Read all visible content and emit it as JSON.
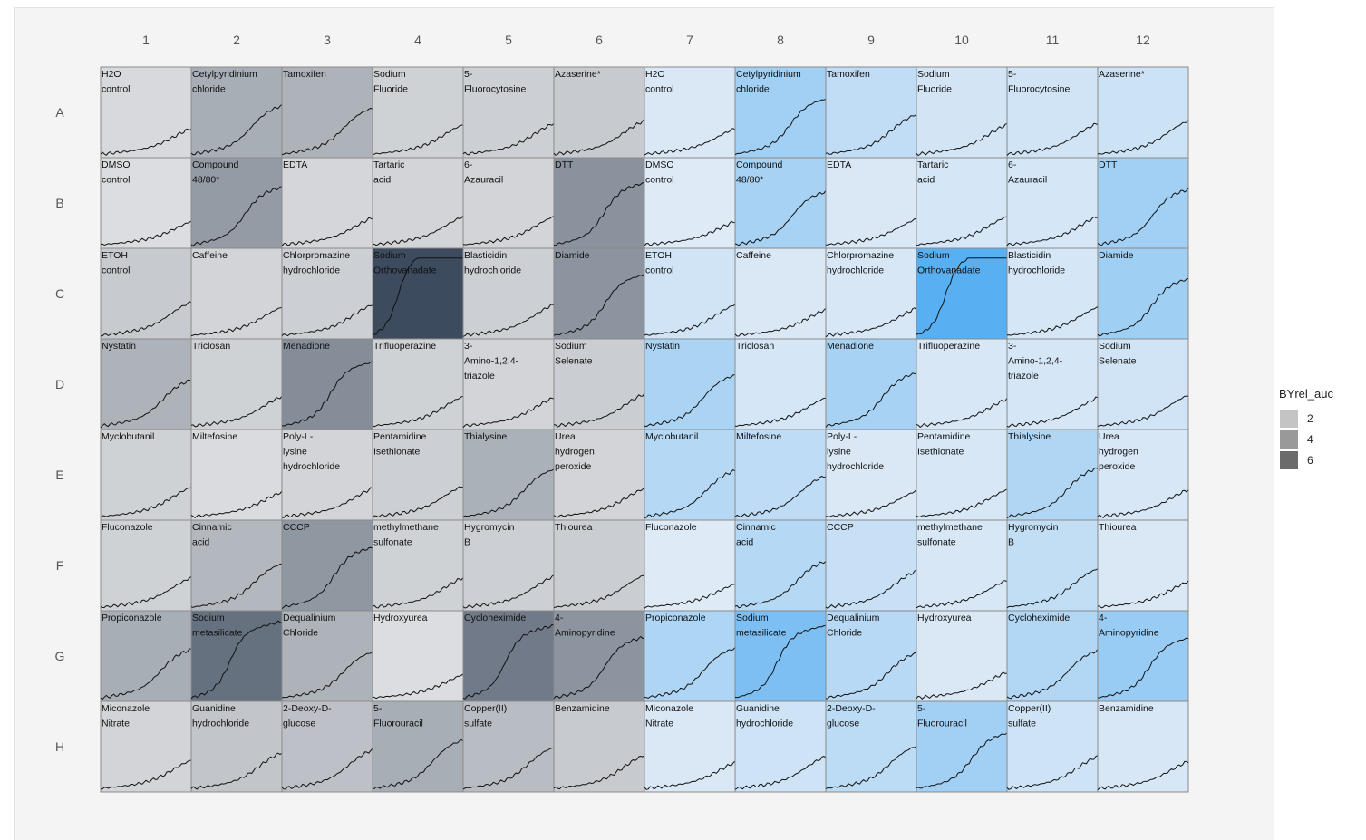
{
  "chart_data": {
    "type": "heatmap",
    "title": "",
    "columns": [
      "1",
      "2",
      "3",
      "4",
      "5",
      "6",
      "7",
      "8",
      "9",
      "10",
      "11",
      "12"
    ],
    "rows": [
      "A",
      "B",
      "C",
      "D",
      "E",
      "F",
      "G",
      "H"
    ],
    "compounds": [
      [
        "H2O\ncontrol",
        "Cetylpyridinium\nchloride",
        "Tamoxifen",
        "Sodium\nFluoride",
        "5-\nFluorocytosine",
        "Azaserine*"
      ],
      [
        "DMSO\ncontrol",
        "Compound\n48/80*",
        "EDTA",
        "Tartaric\nacid",
        "6-\nAzauracil",
        "DTT"
      ],
      [
        "ETOH\ncontrol",
        "Caffeine",
        "Chlorpromazine\nhydrochloride",
        "Sodium\nOrthovanadate",
        "Blasticidin\nhydrochloride",
        "Diamide"
      ],
      [
        "Nystatin",
        "Triclosan",
        "Menadione",
        "Trifluoperazine",
        "3-\nAmino-1,2,4-\ntriazole",
        "Sodium\nSelenate"
      ],
      [
        "Myclobutanil",
        "Miltefosine",
        "Poly-L-\nlysine\nhydrochloride",
        "Pentamidine\nIsethionate",
        "Thialysine",
        "Urea\nhydrogen\nperoxide"
      ],
      [
        "Fluconazole",
        "Cinnamic\nacid",
        "CCCP",
        "methylmethane\nsulfonate",
        "Hygromycin\nB",
        "Thiourea"
      ],
      [
        "Propiconazole",
        "Sodium\nmetasilicate",
        "Dequalinium\nChloride",
        "Hydroxyurea",
        "Cycloheximide",
        "4-\nAminopyridine"
      ],
      [
        "Miconazole\nNitrate",
        "Guanidine\nhydrochloride",
        "2-Deoxy-D-\nglucose",
        "5-\nFluorouracil",
        "Copper(II)\nsulfate",
        "Benzamidine"
      ]
    ],
    "gray_auc": [
      [
        1.4,
        3.2,
        3.0,
        1.7,
        1.8,
        2.0
      ],
      [
        1.2,
        4.0,
        1.5,
        1.6,
        1.6,
        4.4
      ],
      [
        2.0,
        1.6,
        1.8,
        7.4,
        1.8,
        4.3
      ],
      [
        3.0,
        1.7,
        4.6,
        1.7,
        1.6,
        1.9
      ],
      [
        1.7,
        1.3,
        1.6,
        1.8,
        3.1,
        1.6
      ],
      [
        1.7,
        2.8,
        4.2,
        1.7,
        1.8,
        1.9
      ],
      [
        3.2,
        5.8,
        3.0,
        1.2,
        5.4,
        4.3
      ],
      [
        1.6,
        2.2,
        2.4,
        3.2,
        2.6,
        2.0
      ]
    ],
    "blue_auc": [
      [
        1.4,
        3.8,
        2.5,
        1.7,
        1.8,
        2.0
      ],
      [
        1.2,
        3.6,
        1.4,
        1.6,
        1.6,
        3.8
      ],
      [
        1.8,
        1.4,
        1.5,
        7.0,
        1.6,
        3.9
      ],
      [
        3.4,
        1.6,
        3.6,
        1.5,
        1.6,
        1.8
      ],
      [
        3.0,
        2.6,
        1.4,
        1.5,
        3.2,
        1.5
      ],
      [
        1.2,
        3.0,
        2.2,
        1.5,
        2.4,
        1.4
      ],
      [
        3.3,
        5.4,
        2.9,
        1.4,
        3.1,
        4.2
      ],
      [
        1.4,
        1.9,
        2.7,
        3.8,
        1.9,
        1.5
      ]
    ],
    "legend": {
      "title": "BYrel_auc",
      "entries": [
        {
          "label": "2",
          "value": 2,
          "color": "#c4c4c4"
        },
        {
          "label": "4",
          "value": 4,
          "color": "#999999"
        },
        {
          "label": "6",
          "value": 6,
          "color": "#6b6b6b"
        }
      ],
      "position": "right"
    },
    "colors": {
      "panel_background": "#f4f4f4",
      "gray_low": "#e1e2e4",
      "gray_high": "#3a495c",
      "blue_low": "#e3ecf6",
      "blue_high": "#4caaf1",
      "cell_border": "#8a8a8a",
      "curve": "#111111"
    }
  }
}
